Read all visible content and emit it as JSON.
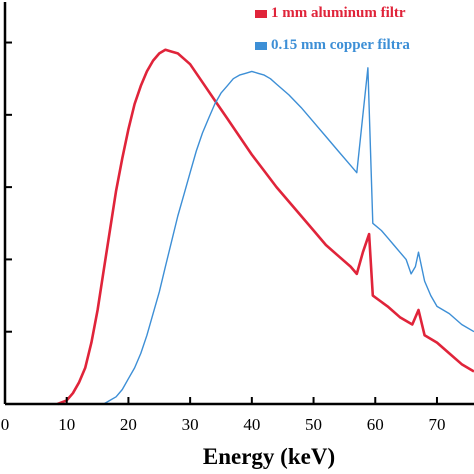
{
  "chart_data": {
    "type": "line",
    "xlabel": "Energy (keV)",
    "ylabel": "",
    "xlim": [
      0,
      76
    ],
    "ylim": [
      0,
      1.09
    ],
    "x_ticks": [
      0,
      10,
      20,
      30,
      40,
      50,
      60,
      70
    ],
    "x_tick_labels": [
      "0",
      "10",
      "20",
      "30",
      "40",
      "50",
      "60",
      "70"
    ],
    "y_ticks": [
      0.2,
      0.4,
      0.6,
      0.8,
      1.0
    ],
    "grid": false,
    "legend_position": "top-right",
    "series": [
      {
        "name": "1 mm aluminum filtr",
        "color": "#e0243a",
        "x": [
          8.5,
          10,
          11,
          12,
          13,
          14,
          15,
          16,
          17,
          18,
          19,
          20,
          21,
          22,
          23,
          24,
          25,
          26,
          27,
          28,
          29,
          30,
          32,
          34,
          36,
          38,
          40,
          42,
          44,
          46,
          48,
          50,
          52,
          54,
          56,
          57,
          58,
          59,
          59.6,
          62,
          64,
          65,
          66,
          67,
          68,
          70,
          72,
          74,
          76
        ],
        "y": [
          0.0,
          0.01,
          0.03,
          0.06,
          0.1,
          0.17,
          0.26,
          0.37,
          0.48,
          0.59,
          0.68,
          0.76,
          0.83,
          0.88,
          0.92,
          0.95,
          0.97,
          0.98,
          0.975,
          0.97,
          0.955,
          0.94,
          0.89,
          0.84,
          0.79,
          0.74,
          0.69,
          0.645,
          0.6,
          0.56,
          0.52,
          0.48,
          0.44,
          0.41,
          0.38,
          0.36,
          0.42,
          0.47,
          0.3,
          0.27,
          0.24,
          0.23,
          0.22,
          0.26,
          0.19,
          0.17,
          0.14,
          0.11,
          0.09
        ]
      },
      {
        "name": "0.15 mm copper filtra",
        "color": "#3d8fd6",
        "x": [
          16,
          17,
          18,
          19,
          20,
          21,
          22,
          23,
          24,
          25,
          26,
          27,
          28,
          29,
          30,
          31,
          32,
          33,
          34,
          35,
          36,
          37,
          38,
          39,
          40,
          41,
          42,
          43,
          44,
          46,
          48,
          50,
          52,
          54,
          56,
          57,
          58,
          58.8,
          59.6,
          61,
          62,
          63,
          64,
          65,
          65.8,
          66.5,
          67,
          68,
          69,
          70,
          72,
          74,
          76
        ],
        "y": [
          0.0,
          0.01,
          0.02,
          0.04,
          0.07,
          0.1,
          0.14,
          0.19,
          0.25,
          0.31,
          0.38,
          0.45,
          0.52,
          0.58,
          0.64,
          0.7,
          0.75,
          0.79,
          0.83,
          0.86,
          0.88,
          0.9,
          0.91,
          0.915,
          0.92,
          0.915,
          0.91,
          0.9,
          0.885,
          0.855,
          0.82,
          0.78,
          0.74,
          0.7,
          0.66,
          0.64,
          0.8,
          0.93,
          0.5,
          0.48,
          0.46,
          0.44,
          0.42,
          0.4,
          0.36,
          0.38,
          0.42,
          0.34,
          0.3,
          0.27,
          0.25,
          0.22,
          0.2
        ]
      }
    ]
  }
}
